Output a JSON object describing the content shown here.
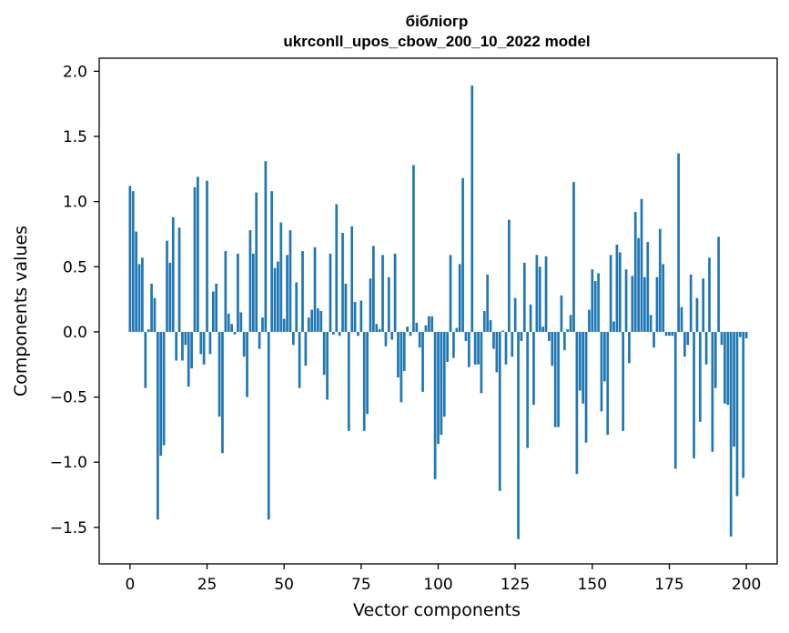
{
  "chart_data": {
    "type": "bar",
    "title_line1": "бібліогр",
    "title_line2": "ukrconll_upos_cbow_200_10_2022 model",
    "xlabel": "Vector components",
    "ylabel": "Components values",
    "xlim": [
      -10,
      210
    ],
    "ylim": [
      -1.78,
      2.1
    ],
    "x_ticks": [
      0,
      25,
      50,
      75,
      100,
      125,
      150,
      175,
      200
    ],
    "x_tick_labels": [
      "0",
      "25",
      "50",
      "75",
      "100",
      "125",
      "150",
      "175",
      "200"
    ],
    "y_ticks": [
      2.0,
      1.5,
      1.0,
      0.5,
      0.0,
      -0.5,
      -1.0,
      -1.5
    ],
    "y_tick_labels": [
      "2.0",
      "1.5",
      "1.0",
      "0.5",
      "0.0",
      "−0.5",
      "−1.0",
      "−1.5"
    ],
    "bar_color": "#1f77b4",
    "grid": false,
    "values": [
      1.12,
      1.08,
      0.77,
      0.52,
      0.57,
      -0.43,
      0.02,
      0.37,
      0.26,
      -1.44,
      -0.95,
      -0.87,
      0.7,
      0.53,
      0.88,
      -0.22,
      0.8,
      -0.22,
      -0.1,
      -0.42,
      -0.28,
      1.11,
      1.19,
      -0.17,
      -0.25,
      1.16,
      -0.17,
      0.31,
      0.37,
      -0.65,
      -0.93,
      0.62,
      0.14,
      0.06,
      -0.02,
      0.6,
      0.15,
      -0.19,
      -0.5,
      0.78,
      0.6,
      1.07,
      -0.13,
      0.11,
      1.31,
      -1.44,
      1.08,
      0.49,
      0.54,
      0.84,
      0.1,
      0.59,
      0.78,
      -0.1,
      0.38,
      -0.43,
      0.62,
      -0.26,
      0.11,
      0.17,
      0.65,
      0.18,
      0.16,
      -0.33,
      -0.52,
      0.6,
      -0.02,
      0.98,
      -0.03,
      0.76,
      0.37,
      -0.76,
      0.81,
      0.23,
      -0.03,
      0.24,
      -0.76,
      -0.63,
      0.41,
      0.66,
      0.06,
      0.02,
      0.59,
      -0.11,
      0.42,
      -0.06,
      0.6,
      -0.35,
      -0.54,
      -0.3,
      0.04,
      -0.03,
      1.28,
      0.07,
      -0.12,
      -0.46,
      0.05,
      0.12,
      0.12,
      -1.13,
      -0.86,
      -0.79,
      -0.65,
      -0.23,
      0.59,
      -0.2,
      0.03,
      0.52,
      1.18,
      -0.07,
      -0.27,
      1.89,
      -0.25,
      -0.25,
      -0.47,
      0.16,
      0.44,
      0.09,
      -0.13,
      -0.31,
      -1.22,
      0.01,
      -0.25,
      0.86,
      -0.19,
      0.26,
      -1.59,
      -0.07,
      0.53,
      -0.89,
      0.21,
      -0.56,
      0.59,
      0.5,
      0.04,
      0.58,
      -0.07,
      -0.26,
      -0.73,
      -0.73,
      0.28,
      -0.14,
      0.02,
      0.13,
      1.15,
      -1.09,
      -0.45,
      -0.55,
      -0.85,
      0.17,
      0.48,
      0.39,
      0.45,
      -0.61,
      -0.38,
      -0.79,
      0.59,
      0.08,
      0.67,
      0.61,
      -0.76,
      0.48,
      -0.24,
      0.43,
      0.92,
      0.72,
      1.02,
      0.42,
      0.69,
      0.13,
      -0.12,
      0.42,
      0.79,
      0.52,
      -0.03,
      -0.03,
      -0.03,
      -1.05,
      1.37,
      0.19,
      -0.19,
      -0.1,
      0.44,
      -0.97,
      0.26,
      -0.69,
      0.41,
      -0.25,
      0.57,
      -0.92,
      -0.43,
      0.73,
      -0.1,
      -0.55,
      -0.56,
      -1.57,
      -0.88,
      -1.26,
      -0.04,
      -1.12,
      -0.05
    ]
  }
}
